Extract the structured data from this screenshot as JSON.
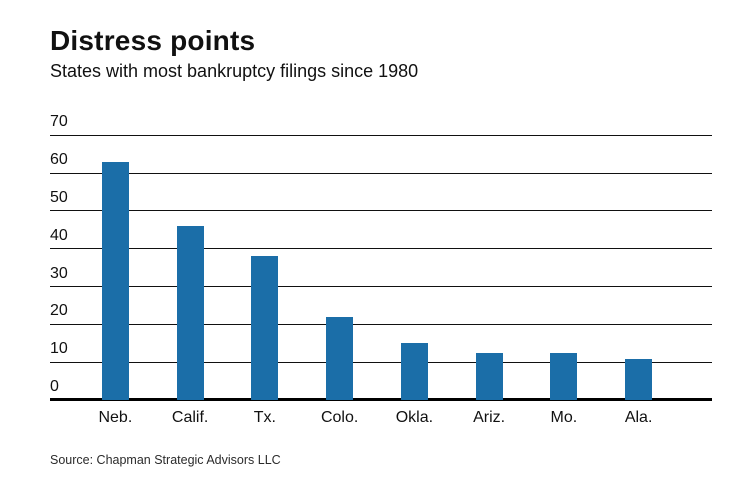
{
  "page": {
    "title": "Distress points",
    "subtitle": "States with most bankruptcy filings since 1980",
    "source": "Source: Chapman Strategic Advisors LLC"
  },
  "colors": {
    "bar": "#1b6ea8",
    "gridline": "#111111",
    "axis": "#000000",
    "text": "#111111"
  },
  "chart_data": {
    "type": "bar",
    "title": "Distress points",
    "subtitle": "States with most bankruptcy filings since 1980",
    "categories": [
      "Neb.",
      "Calif.",
      "Tx.",
      "Colo.",
      "Okla.",
      "Ariz.",
      "Mo.",
      "Ala."
    ],
    "values": [
      63,
      46,
      38,
      22,
      15,
      12.5,
      12.5,
      11
    ],
    "xlabel": "",
    "ylabel": "",
    "ylim": [
      0,
      70
    ],
    "yticks": [
      0,
      10,
      20,
      30,
      40,
      50,
      60,
      70
    ],
    "grid": "horizontal",
    "legend": "none",
    "source": "Source: Chapman Strategic Advisors LLC"
  }
}
